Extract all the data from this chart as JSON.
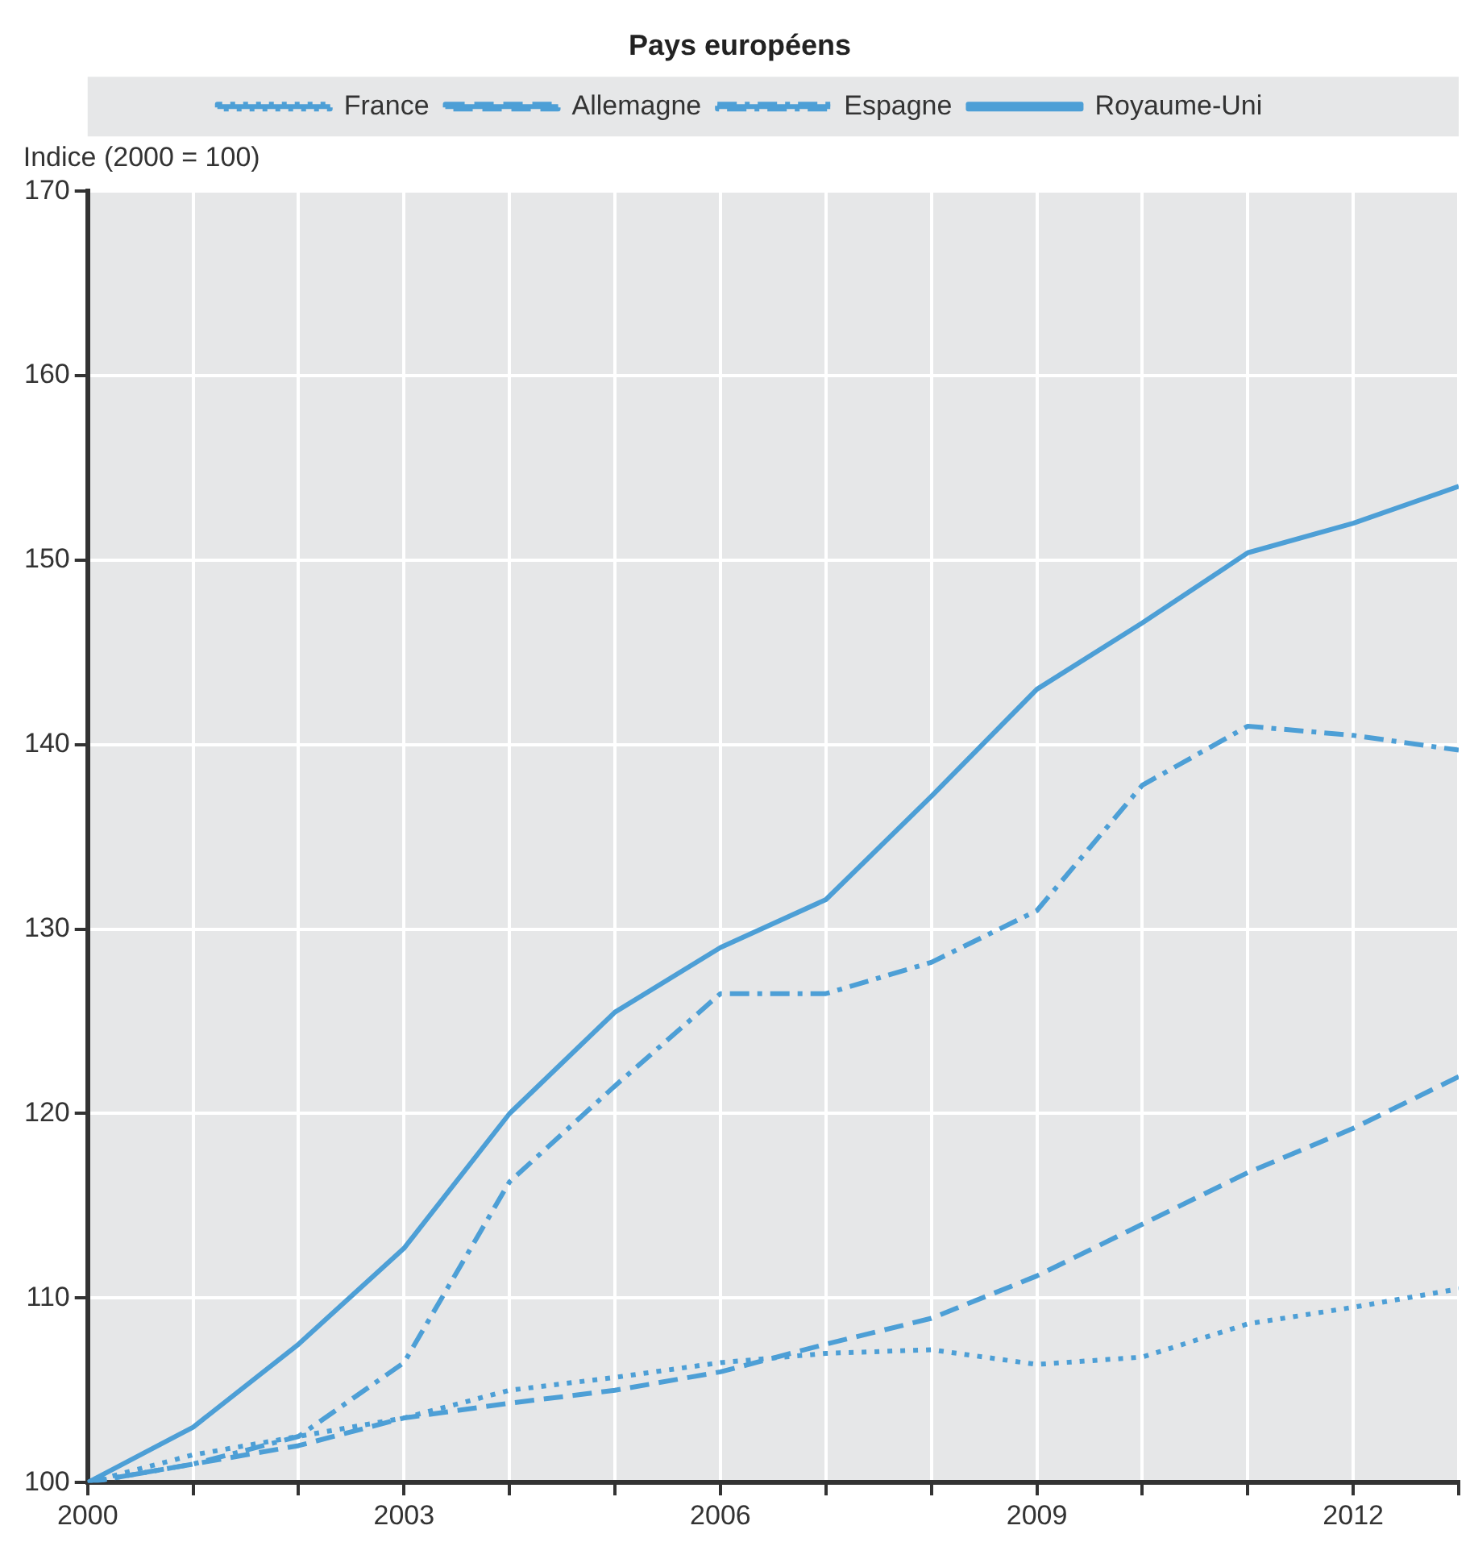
{
  "chart_data": {
    "type": "line",
    "title": "Pays européens",
    "ylabel": "Indice (2000 = 100)",
    "x": [
      2000,
      2001,
      2002,
      2003,
      2004,
      2005,
      2006,
      2007,
      2008,
      2009,
      2010,
      2011,
      2012,
      2013
    ],
    "series": [
      {
        "name": "France",
        "color": "#4d9fd6",
        "line_style": "dotted",
        "values": [
          100,
          101.5,
          102.5,
          103.5,
          105,
          105.7,
          106.5,
          107,
          107.2,
          106.4,
          106.8,
          108.6,
          109.5,
          110.5
        ]
      },
      {
        "name": "Allemagne",
        "color": "#4d9fd6",
        "line_style": "dashed",
        "values": [
          100,
          101,
          102,
          103.5,
          104.3,
          105,
          106,
          107.5,
          108.9,
          111.2,
          114,
          116.8,
          119.2,
          122
        ]
      },
      {
        "name": "Espagne",
        "color": "#4d9fd6",
        "line_style": "dashdot",
        "values": [
          100,
          101,
          102.5,
          106.5,
          116.3,
          121.5,
          126.5,
          126.5,
          128.2,
          131,
          137.8,
          141,
          140.5,
          139.7
        ]
      },
      {
        "name": "Royaume-Uni",
        "color": "#4d9fd6",
        "line_style": "solid",
        "values": [
          100,
          103,
          107.5,
          112.7,
          120,
          125.5,
          129,
          131.6,
          137.2,
          143,
          146.6,
          150.4,
          152,
          154
        ]
      }
    ],
    "xlim": [
      2000,
      2013
    ],
    "xticks": [
      2000,
      {
        "value": 2001,
        "label": null
      },
      {
        "value": 2002,
        "label": null
      },
      2003,
      {
        "value": 2004,
        "label": null
      },
      {
        "value": 2005,
        "label": null
      },
      2006,
      {
        "value": 2007,
        "label": null
      },
      {
        "value": 2008,
        "label": null
      },
      2009,
      {
        "value": 2010,
        "label": null
      },
      {
        "value": 2011,
        "label": null
      },
      2012,
      {
        "value": 2013,
        "label": null
      }
    ],
    "ylim": [
      100,
      170
    ],
    "yticks": [
      100,
      110,
      120,
      130,
      140,
      150,
      160,
      170
    ],
    "grid": true,
    "legend": "top",
    "marker": "none"
  }
}
